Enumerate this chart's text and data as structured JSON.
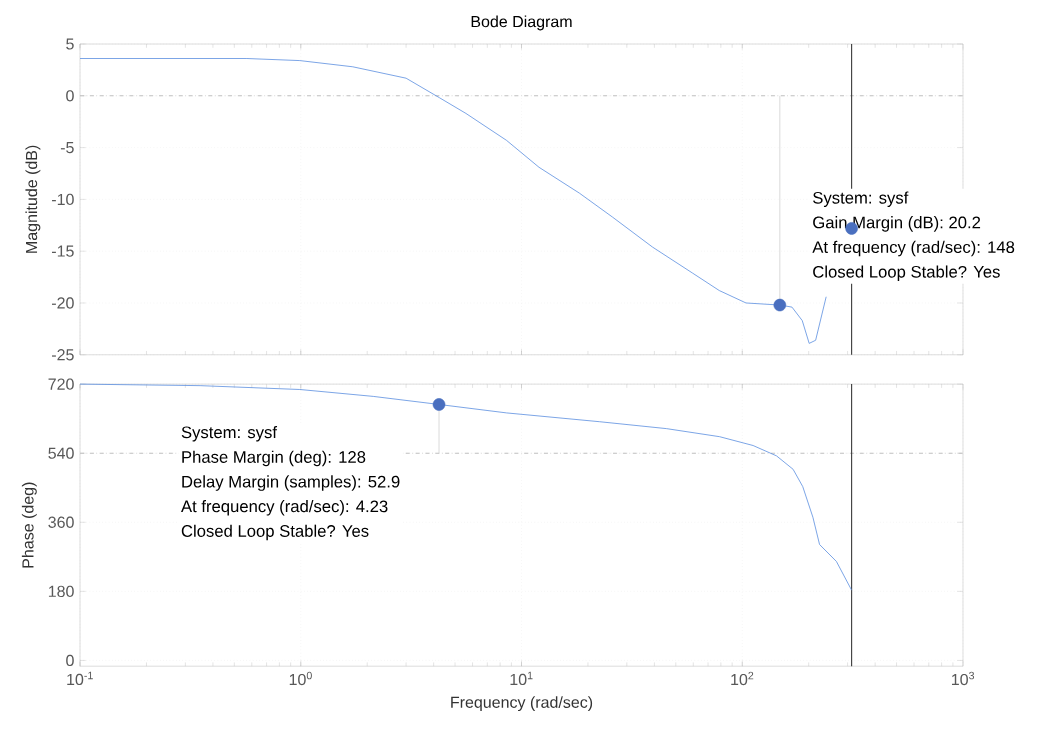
{
  "chart_data": [
    {
      "type": "line",
      "title": "Bode Diagram",
      "ylabel": "Magnitude (dB)",
      "log": "x",
      "grid": true,
      "tick_labels": "y",
      "xlim": [
        0.1,
        1000
      ],
      "xticks": [
        {
          "value": 0.1,
          "label": null
        },
        {
          "value": 1,
          "label": null
        },
        {
          "value": 10,
          "label": null
        },
        {
          "value": 100,
          "label": null
        },
        {
          "value": 1000,
          "label": null
        }
      ],
      "ylim": [
        -25,
        5
      ],
      "yticks": [
        -25,
        -20,
        -15,
        -10,
        -5,
        0,
        5
      ],
      "series": [
        {
          "color": "#5a8ee0",
          "x": [
            0.1,
            0.57,
            0.99,
            1.72,
            3.0,
            4.26,
            5.6,
            8.55,
            12.0,
            18.3,
            25.8,
            39.2,
            59.4,
            78.7,
            104,
            148,
            168,
            187,
            201,
            215,
            240
          ],
          "values": [
            3.6,
            3.6,
            3.4,
            2.8,
            1.7,
            -0.2,
            -1.7,
            -4.3,
            -6.9,
            -9.4,
            -11.7,
            -14.6,
            -17.1,
            -18.8,
            -20.0,
            -20.2,
            -20.4,
            -21.7,
            -23.9,
            -23.6,
            -19.4
          ]
        },
        {
          "type": "line",
          "color": "#d0d0d0",
          "x": [
            148,
            148
          ],
          "values": [
            -20.2,
            0
          ]
        },
        {
          "type": "scatter",
          "marker": "circle",
          "color": "#4a6fbf",
          "x": [
            148,
            313
          ],
          "values": [
            -20.2,
            -12.8
          ]
        }
      ],
      "ref_lines": [
        {
          "axis": "y",
          "value": 0,
          "color": "#c0c0c0",
          "line_style": "dashed"
        },
        {
          "axis": "x",
          "value": 313,
          "color": "#333333",
          "line_style": "solid"
        }
      ],
      "annotations": [
        "System: sysf",
        "Gain Margin (dB): 20.2",
        "At frequency (rad/sec): 148",
        "Closed Loop Stable? Yes"
      ]
    },
    {
      "type": "line",
      "xlabel": "Frequency  (rad/sec)",
      "ylabel": "Phase (deg)",
      "log": "x",
      "grid": true,
      "xlim": [
        0.1,
        1000
      ],
      "xticks": [
        {
          "value": 0.1,
          "label": "10$^{-1}$"
        },
        {
          "value": 1,
          "label": "10$^{0}$"
        },
        {
          "value": 10,
          "label": "10$^{1}$"
        },
        {
          "value": 100,
          "label": "10$^{2}$"
        },
        {
          "value": 1000,
          "label": "10$^{3}$"
        }
      ],
      "ylim": [
        -15,
        720
      ],
      "yticks": [
        0,
        180,
        360,
        540,
        720
      ],
      "series": [
        {
          "color": "#5a8ee0",
          "x": [
            0.1,
            0.35,
            0.99,
            2.13,
            4.23,
            8.55,
            22.6,
            45.4,
            79,
            112,
            143,
            170,
            188,
            209,
            224,
            267,
            313
          ],
          "values": [
            720,
            716,
            706,
            688,
            667,
            645,
            622,
            604,
            583,
            560,
            533,
            498,
            453,
            373,
            302,
            258,
            183
          ]
        },
        {
          "type": "line",
          "color": "#d0d0d0",
          "x": [
            4.23,
            4.23
          ],
          "values": [
            667,
            540
          ]
        },
        {
          "type": "scatter",
          "marker": "circle",
          "color": "#4a6fbf",
          "x": [
            4.23
          ],
          "values": [
            667
          ]
        }
      ],
      "ref_lines": [
        {
          "axis": "y",
          "value": 540,
          "color": "#c0c0c0",
          "line_style": "dashed"
        },
        {
          "axis": "x",
          "value": 313,
          "color": "#333333",
          "line_style": "solid"
        }
      ],
      "annotations": [
        "System: sysf",
        "Phase Margin (deg): 128",
        "Delay Margin (samples): 52.9",
        "At frequency (rad/sec): 4.23",
        "Closed Loop Stable? Yes"
      ]
    }
  ]
}
